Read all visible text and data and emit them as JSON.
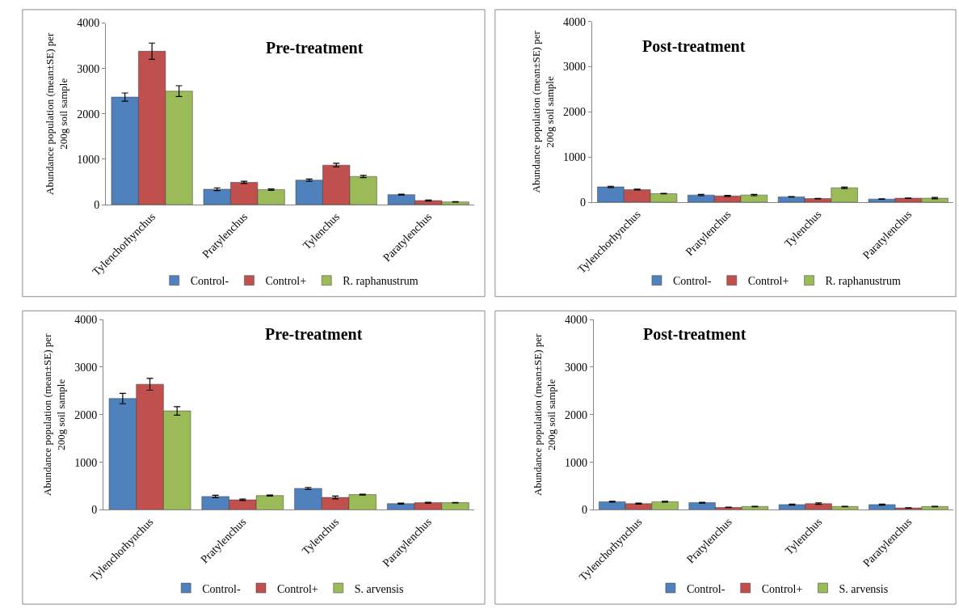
{
  "chart_data": [
    {
      "type": "bar",
      "title": "Pre-treatment",
      "ylabel": "Abundance population (mean±SE) per 200g soil sample",
      "categories": [
        "Tylenchorhynchus",
        "Pratylenchus",
        "Tylenchus",
        "Paratylenchus"
      ],
      "ylim": [
        0,
        4000
      ],
      "yticks": [
        0,
        1000,
        2000,
        3000,
        4000
      ],
      "legend": "bottom",
      "series": [
        {
          "name": "Control-",
          "color": "#4f81bd",
          "values": [
            2370,
            340,
            540,
            220
          ],
          "errors": [
            90,
            30,
            25,
            10
          ]
        },
        {
          "name": "Control+",
          "color": "#c0504d",
          "values": [
            3380,
            490,
            870,
            90
          ],
          "errors": [
            180,
            25,
            40,
            10
          ]
        },
        {
          "name": "R. raphanustrum",
          "color": "#9bbb59",
          "values": [
            2500,
            330,
            620,
            60
          ],
          "errors": [
            120,
            15,
            25,
            5
          ]
        }
      ]
    },
    {
      "type": "bar",
      "title": "Post-treatment",
      "ylabel": "Abundance population (mean±SE) per 200g soil sample",
      "categories": [
        "Tylenchorhynchus",
        "Pratylenchus",
        "Tylenchus",
        "Paratylenchus"
      ],
      "ylim": [
        0,
        4000
      ],
      "yticks": [
        0,
        1000,
        2000,
        3000,
        4000
      ],
      "legend": "bottom",
      "series": [
        {
          "name": "Control-",
          "color": "#4f81bd",
          "values": [
            340,
            160,
            120,
            70
          ],
          "errors": [
            15,
            15,
            5,
            5
          ]
        },
        {
          "name": "Control+",
          "color": "#c0504d",
          "values": [
            280,
            140,
            80,
            90
          ],
          "errors": [
            10,
            10,
            5,
            5
          ]
        },
        {
          "name": "R. raphanustrum",
          "color": "#9bbb59",
          "values": [
            190,
            160,
            320,
            90
          ],
          "errors": [
            5,
            15,
            15,
            15
          ]
        }
      ]
    },
    {
      "type": "bar",
      "title": "Pre-treatment",
      "ylabel": "Abundance population (mean±SE) per 200g soil sample",
      "categories": [
        "Tylenchorhynchus",
        "Pratylenchus",
        "Tylenchus",
        "Paratylenchus"
      ],
      "ylim": [
        0,
        4000
      ],
      "yticks": [
        0,
        1000,
        2000,
        3000,
        4000
      ],
      "legend": "bottom",
      "series": [
        {
          "name": "Control-",
          "color": "#4f81bd",
          "values": [
            2340,
            280,
            450,
            130
          ],
          "errors": [
            110,
            25,
            20,
            10
          ]
        },
        {
          "name": "Control+",
          "color": "#c0504d",
          "values": [
            2640,
            210,
            260,
            150
          ],
          "errors": [
            125,
            15,
            30,
            10
          ]
        },
        {
          "name": "S. arvensis",
          "color": "#9bbb59",
          "values": [
            2080,
            300,
            320,
            150
          ],
          "errors": [
            90,
            10,
            10,
            5
          ]
        }
      ]
    },
    {
      "type": "bar",
      "title": "Post-treatment",
      "ylabel": "Abundance population (mean±SE) per 200g soil sample",
      "categories": [
        "Tylenchorhynchus",
        "Pratylenchus",
        "Tylenchus",
        "Paratylenchus"
      ],
      "ylim": [
        0,
        4000
      ],
      "yticks": [
        0,
        1000,
        2000,
        3000,
        4000
      ],
      "legend": "bottom",
      "series": [
        {
          "name": "Control-",
          "color": "#4f81bd",
          "values": [
            170,
            150,
            110,
            110
          ],
          "errors": [
            10,
            10,
            10,
            10
          ]
        },
        {
          "name": "Control+",
          "color": "#c0504d",
          "values": [
            130,
            50,
            130,
            40
          ],
          "errors": [
            10,
            5,
            15,
            5
          ]
        },
        {
          "name": "S. arvensis",
          "color": "#9bbb59",
          "values": [
            170,
            70,
            70,
            70
          ],
          "errors": [
            10,
            5,
            5,
            5
          ]
        }
      ]
    }
  ]
}
